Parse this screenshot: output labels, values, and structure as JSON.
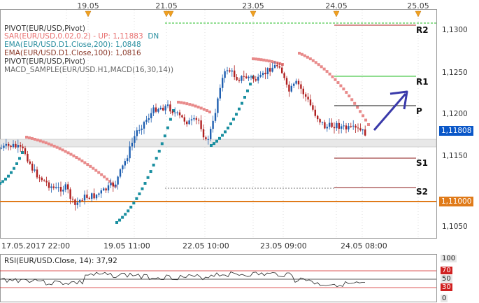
{
  "top_dates": [
    "19.05",
    "21.05",
    "23.05",
    "24.05",
    "25.05"
  ],
  "legend": [
    {
      "text": "PIVOT(EUR/USD,Pivot)",
      "color": "#222222"
    },
    {
      "text": "SAR(EUR/USD,0.02,0.2) - UP: 1,11883",
      "extra": "DN",
      "color": "#e87070",
      "extra_color": "#2a8fa0"
    },
    {
      "text": "EMA(EUR/USD.D1.Close,200): 1,0848",
      "color": "#2a8fa0"
    },
    {
      "text": "EMA(EUR/USD.D1.Close,100): 1,0816",
      "color": "#8b3a2a"
    },
    {
      "text": "PIVOT(EUR/USD,Pivot)",
      "color": "#222222"
    },
    {
      "text": "MACD_SAMPLE(EUR/USD.H1,MACD(16,30,14))",
      "color": "#666666"
    }
  ],
  "price_axis": {
    "ticks": [
      "1,1300",
      "1,1250",
      "1,1200",
      "1,1150",
      "1,1050"
    ],
    "current_price": "1,11808",
    "level_price": "1,11000"
  },
  "pivots": {
    "r2": "R2",
    "r1": "R1",
    "p": "P",
    "s1": "S1",
    "s2": "S2"
  },
  "bottom_dates": [
    "17.05.2017 22:00",
    "19.05 11:00",
    "22.05 10:00",
    "23.05 09:00",
    "24.05 08:00"
  ],
  "rsi": {
    "title": "RSI(EUR/USD.Close, 14): 37,92",
    "ticks": [
      "100",
      "70",
      "50",
      "30",
      "0"
    ]
  },
  "colors": {
    "bull_candle": "#1f5fb0",
    "bear_candle": "#b02020",
    "sar_up": "#e88a8a",
    "sar_dn": "#1a8fa0",
    "level_orange": "#e07b1a",
    "r1_green": "#22bb22",
    "support_red": "#8b1a1a",
    "arrow": "#3a3aaa"
  },
  "icons": {
    "date_marker": "down-triangle-marker-icon",
    "trend_arrow": "up-arrow-icon"
  }
}
